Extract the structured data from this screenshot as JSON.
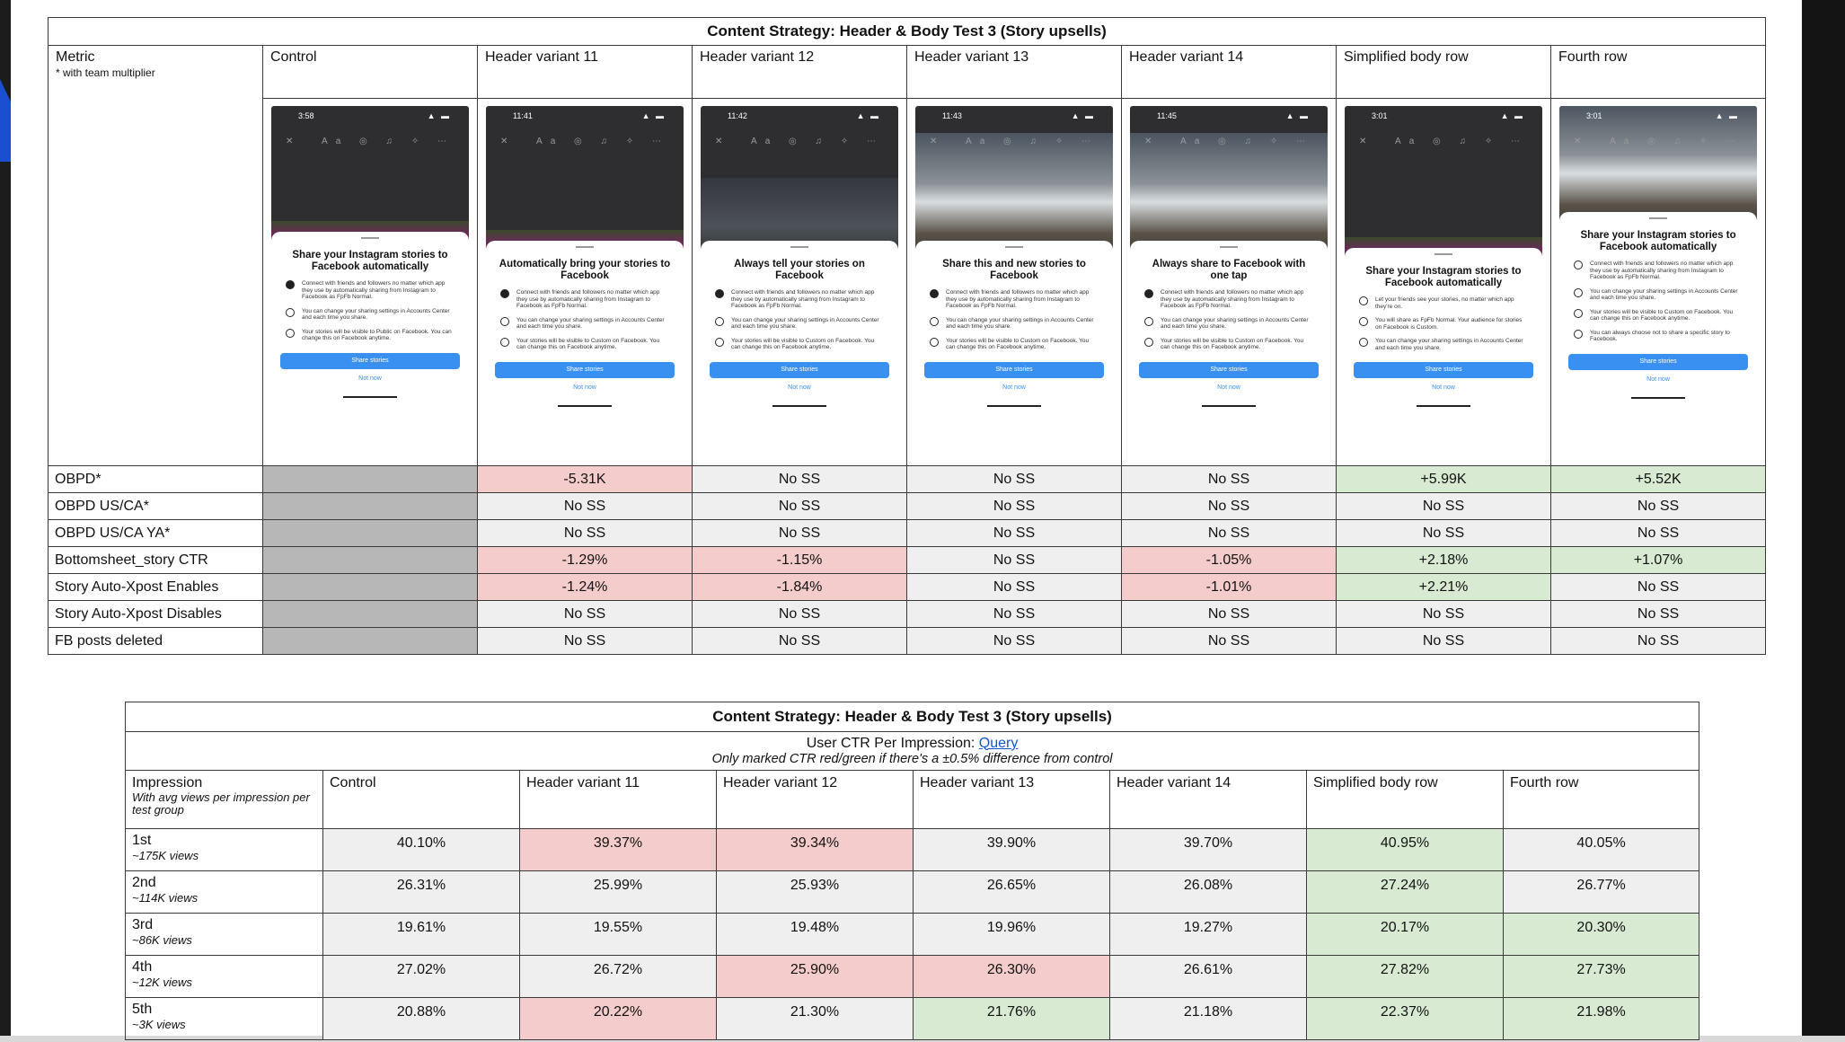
{
  "top_table": {
    "title": "Content Strategy: Header & Body Test 3 (Story upsells)",
    "metric_header": "Metric",
    "metric_subheader": "* with team multiplier",
    "columns": [
      "Control",
      "Header variant 11",
      "Header variant 12",
      "Header variant 13",
      "Header variant 14",
      "Simplified body row",
      "Fourth row"
    ],
    "mockups": [
      {
        "time": "3:58",
        "title": "Share your Instagram stories to Facebook automatically",
        "bullets": [
          "Connect with friends and followers no matter which app they use by automatically sharing from Instagram to Facebook as FpFb Normal.",
          "You can change your sharing settings in Accounts Center and each time you share.",
          "Your stories will be visible to Public on Facebook. You can change this on Facebook anytime."
        ],
        "button": "Share stories",
        "secondary": "Not now"
      },
      {
        "time": "11:41",
        "title": "Automatically bring your stories to Facebook",
        "bullets": [
          "Connect with friends and followers no matter which app they use by automatically sharing from Instagram to Facebook as FpFb Normal.",
          "You can change your sharing settings in Accounts Center and each time you share.",
          "Your stories will be visible to Custom on Facebook. You can change this on Facebook anytime."
        ],
        "button": "Share stories",
        "secondary": "Not now"
      },
      {
        "time": "11:42",
        "title": "Always tell your stories on Facebook",
        "bullets": [
          "Connect with friends and followers no matter which app they use by automatically sharing from Instagram to Facebook as FpFb Normal.",
          "You can change your sharing settings in Accounts Center and each time you share.",
          "Your stories will be visible to Custom on Facebook. You can change this on Facebook anytime."
        ],
        "button": "Share stories",
        "secondary": "Not now"
      },
      {
        "time": "11:43",
        "title": "Share this and new stories to Facebook",
        "bullets": [
          "Connect with friends and followers no matter which app they use by automatically sharing from Instagram to Facebook as FpFb Normal.",
          "You can change your sharing settings in Accounts Center and each time you share.",
          "Your stories will be visible to Custom on Facebook. You can change this on Facebook anytime."
        ],
        "button": "Share stories",
        "secondary": "Not now"
      },
      {
        "time": "11:45",
        "title": "Always share to Facebook with one tap",
        "bullets": [
          "Connect with friends and followers no matter which app they use by automatically sharing from Instagram to Facebook as FpFb Normal.",
          "You can change your sharing settings in Accounts Center and each time you share.",
          "Your stories will be visible to Custom on Facebook. You can change this on Facebook anytime."
        ],
        "button": "Share stories",
        "secondary": "Not now"
      },
      {
        "time": "3:01",
        "title": "Share your Instagram stories to Facebook automatically",
        "bullets": [
          "Let your friends see your stories, no matter which app they're on.",
          "You will share as FpFb Normal. Your audience for stories on Facebook is Custom.",
          "You can change your sharing settings in Accounts Center and each time you share."
        ],
        "button": "Share stories",
        "secondary": "Not now"
      },
      {
        "time": "3:01",
        "title": "Share your Instagram stories to Facebook automatically",
        "bullets": [
          "Connect with friends and followers no matter which app they use by automatically sharing from Instagram to Facebook as FpFb Normal.",
          "You can change your sharing settings in Accounts Center and each time you share.",
          "Your stories will be visible to Custom on Facebook. You can change this on Facebook anytime.",
          "You can always choose not to share a specific story to Facebook."
        ],
        "button": "Share stories",
        "secondary": "Not now"
      }
    ],
    "rows": [
      {
        "label": "OBPD*",
        "values": [
          "",
          "-5.31K",
          "No SS",
          "No SS",
          "No SS",
          "+5.99K",
          "+5.52K"
        ],
        "colors": [
          "control",
          "red",
          "none",
          "none",
          "none",
          "green",
          "green"
        ]
      },
      {
        "label": "OBPD US/CA*",
        "values": [
          "",
          "No SS",
          "No SS",
          "No SS",
          "No SS",
          "No SS",
          "No SS"
        ],
        "colors": [
          "control",
          "none",
          "none",
          "none",
          "none",
          "none",
          "none"
        ]
      },
      {
        "label": "OBPD US/CA YA*",
        "values": [
          "",
          "No SS",
          "No SS",
          "No SS",
          "No SS",
          "No SS",
          "No SS"
        ],
        "colors": [
          "control",
          "none",
          "none",
          "none",
          "none",
          "none",
          "none"
        ]
      },
      {
        "label": "Bottomsheet_story CTR",
        "values": [
          "",
          "-1.29%",
          "-1.15%",
          "No SS",
          "-1.05%",
          "+2.18%",
          "+1.07%"
        ],
        "colors": [
          "control",
          "red",
          "red",
          "none",
          "red",
          "green",
          "green"
        ]
      },
      {
        "label": "Story Auto-Xpost Enables",
        "values": [
          "",
          "-1.24%",
          "-1.84%",
          "No SS",
          "-1.01%",
          "+2.21%",
          "No SS"
        ],
        "colors": [
          "control",
          "red",
          "red",
          "none",
          "red",
          "green",
          "none"
        ]
      },
      {
        "label": "Story Auto-Xpost Disables",
        "values": [
          "",
          "No SS",
          "No SS",
          "No SS",
          "No SS",
          "No SS",
          "No SS"
        ],
        "colors": [
          "control",
          "none",
          "none",
          "none",
          "none",
          "none",
          "none"
        ]
      },
      {
        "label": "FB posts deleted",
        "values": [
          "",
          "No SS",
          "No SS",
          "No SS",
          "No SS",
          "No SS",
          "No SS"
        ],
        "colors": [
          "control",
          "none",
          "none",
          "none",
          "none",
          "none",
          "none"
        ]
      }
    ]
  },
  "bottom_table": {
    "title": "Content Strategy: Header & Body Test 3 (Story upsells)",
    "info_prefix": "User CTR Per Impression: ",
    "info_link": "Query",
    "info_note": "Only marked CTR red/green if there's a ±0.5% difference from control",
    "impression_header": "Impression",
    "impression_subheader": "With avg views per impression per test group",
    "columns": [
      "Control",
      "Header variant 11",
      "Header variant 12",
      "Header variant 13",
      "Header variant 14",
      "Simplified body row",
      "Fourth row"
    ],
    "rows": [
      {
        "label": "1st",
        "sub": "~175K views",
        "values": [
          "40.10%",
          "39.37%",
          "39.34%",
          "39.90%",
          "39.70%",
          "40.95%",
          "40.05%"
        ],
        "colors": [
          "none",
          "red",
          "red",
          "none",
          "none",
          "green",
          "none"
        ]
      },
      {
        "label": "2nd",
        "sub": "~114K views",
        "values": [
          "26.31%",
          "25.99%",
          "25.93%",
          "26.65%",
          "26.08%",
          "27.24%",
          "26.77%"
        ],
        "colors": [
          "none",
          "none",
          "none",
          "none",
          "none",
          "green",
          "none"
        ]
      },
      {
        "label": "3rd",
        "sub": "~86K views",
        "values": [
          "19.61%",
          "19.55%",
          "19.48%",
          "19.96%",
          "19.27%",
          "20.17%",
          "20.30%"
        ],
        "colors": [
          "none",
          "none",
          "none",
          "none",
          "none",
          "green",
          "green"
        ]
      },
      {
        "label": "4th",
        "sub": "~12K views",
        "values": [
          "27.02%",
          "26.72%",
          "25.90%",
          "26.30%",
          "26.61%",
          "27.82%",
          "27.73%"
        ],
        "colors": [
          "none",
          "none",
          "red",
          "red",
          "none",
          "green",
          "green"
        ]
      },
      {
        "label": "5th",
        "sub": "~3K views",
        "values": [
          "20.88%",
          "20.22%",
          "21.30%",
          "21.76%",
          "21.18%",
          "22.37%",
          "21.98%"
        ],
        "colors": [
          "none",
          "red",
          "none",
          "green",
          "none",
          "green",
          "green"
        ]
      }
    ]
  },
  "colors": {
    "red": "#f4cccc",
    "green": "#d9ead3",
    "neutral": "#efefef",
    "control": "#b7b7b7",
    "button": "#3a90f0"
  }
}
